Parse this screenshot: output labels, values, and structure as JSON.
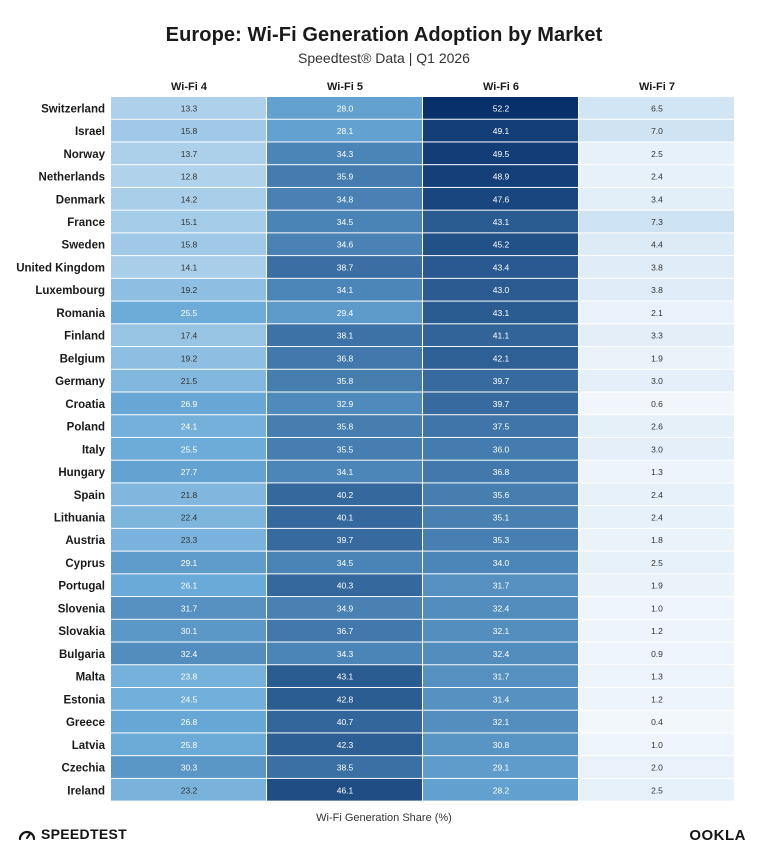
{
  "header": {
    "title": "Europe: Wi-Fi Generation Adoption by Market",
    "subtitle": "Speedtest® Data | Q1 2026"
  },
  "footer": {
    "brand_left": "SPEEDTEST",
    "brand_left_icon": "speedtest-gauge-icon",
    "brand_right": "OOKLA"
  },
  "chart_data": {
    "type": "heatmap",
    "title": "Europe: Wi-Fi Generation Adoption by Market",
    "subtitle": "Speedtest® Data | Q1 2026",
    "xlabel": "Wi-Fi Generation Share (%)",
    "columns": [
      "Wi-Fi 4",
      "Wi-Fi 5",
      "Wi-Fi 6",
      "Wi-Fi 7"
    ],
    "rows": [
      "Switzerland",
      "Israel",
      "Norway",
      "Netherlands",
      "Denmark",
      "France",
      "Sweden",
      "United Kingdom",
      "Luxembourg",
      "Romania",
      "Finland",
      "Belgium",
      "Germany",
      "Croatia",
      "Poland",
      "Italy",
      "Hungary",
      "Spain",
      "Lithuania",
      "Austria",
      "Cyprus",
      "Portugal",
      "Slovenia",
      "Slovakia",
      "Bulgaria",
      "Malta",
      "Estonia",
      "Greece",
      "Latvia",
      "Czechia",
      "Ireland"
    ],
    "values": [
      [
        13.3,
        28.0,
        52.2,
        6.5
      ],
      [
        15.8,
        28.1,
        49.1,
        7.0
      ],
      [
        13.7,
        34.3,
        49.5,
        2.5
      ],
      [
        12.8,
        35.9,
        48.9,
        2.4
      ],
      [
        14.2,
        34.8,
        47.6,
        3.4
      ],
      [
        15.1,
        34.5,
        43.1,
        7.3
      ],
      [
        15.8,
        34.6,
        45.2,
        4.4
      ],
      [
        14.1,
        38.7,
        43.4,
        3.8
      ],
      [
        19.2,
        34.1,
        43.0,
        3.8
      ],
      [
        25.5,
        29.4,
        43.1,
        2.1
      ],
      [
        17.4,
        38.1,
        41.1,
        3.3
      ],
      [
        19.2,
        36.8,
        42.1,
        1.9
      ],
      [
        21.5,
        35.8,
        39.7,
        3.0
      ],
      [
        26.9,
        32.9,
        39.7,
        0.6
      ],
      [
        24.1,
        35.8,
        37.5,
        2.6
      ],
      [
        25.5,
        35.5,
        36.0,
        3.0
      ],
      [
        27.7,
        34.1,
        36.8,
        1.3
      ],
      [
        21.8,
        40.2,
        35.6,
        2.4
      ],
      [
        22.4,
        40.1,
        35.1,
        2.4
      ],
      [
        23.3,
        39.7,
        35.3,
        1.8
      ],
      [
        29.1,
        34.5,
        34.0,
        2.5
      ],
      [
        26.1,
        40.3,
        31.7,
        1.9
      ],
      [
        31.7,
        34.9,
        32.4,
        1.0
      ],
      [
        30.1,
        36.7,
        32.1,
        1.2
      ],
      [
        32.4,
        34.3,
        32.4,
        0.9
      ],
      [
        23.8,
        43.1,
        31.7,
        1.3
      ],
      [
        24.5,
        42.8,
        31.4,
        1.2
      ],
      [
        26.8,
        40.7,
        32.1,
        0.4
      ],
      [
        25.8,
        42.3,
        30.8,
        1.0
      ],
      [
        30.3,
        38.5,
        29.1,
        2.0
      ],
      [
        23.2,
        46.1,
        28.2,
        2.5
      ]
    ],
    "color_range": [
      0,
      52.2
    ],
    "colors": {
      "low": "#f4f8fd",
      "mid": "#6aaad8",
      "high": "#08306b"
    },
    "grid": true,
    "legend": "none"
  }
}
